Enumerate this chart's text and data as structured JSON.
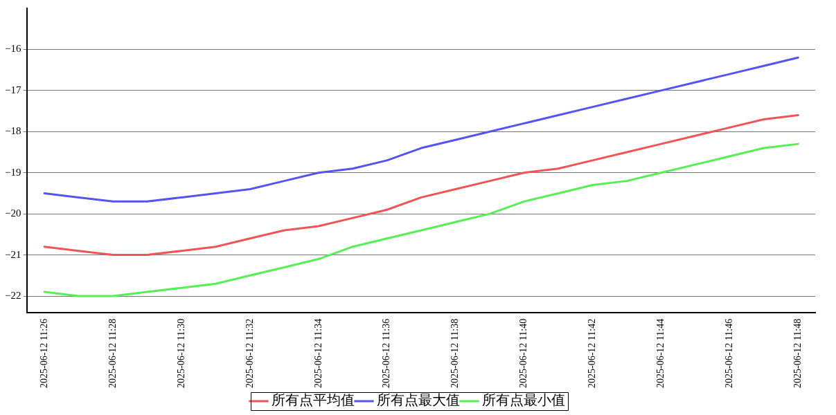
{
  "chart_data": {
    "type": "line",
    "categories": [
      "2025-06-12 11:26",
      null,
      "2025-06-12 11:28",
      null,
      "2025-06-12 11:30",
      null,
      "2025-06-12 11:32",
      null,
      "2025-06-12 11:34",
      null,
      "2025-06-12 11:36",
      null,
      "2025-06-12 11:38",
      null,
      "2025-06-12 11:40",
      null,
      "2025-06-12 11:42",
      null,
      "2025-06-12 11:44",
      null,
      "2025-06-12 11:46",
      null,
      "2025-06-12 11:48"
    ],
    "series": [
      {
        "name": "所有点平均值",
        "color": "#f05454",
        "values": [
          -20.8,
          -20.9,
          -21.0,
          -21.0,
          -20.9,
          -20.8,
          -20.6,
          -20.4,
          -20.3,
          -20.1,
          -19.9,
          -19.6,
          -19.4,
          -19.2,
          -19.0,
          -18.9,
          -18.7,
          -18.5,
          -18.3,
          -18.1,
          -17.9,
          -17.7,
          -17.6
        ]
      },
      {
        "name": "所有点最大值",
        "color": "#5454f0",
        "values": [
          -19.5,
          -19.6,
          -19.7,
          -19.7,
          -19.6,
          -19.5,
          -19.4,
          -19.2,
          -19.0,
          -18.9,
          -18.7,
          -18.4,
          -18.2,
          -18.0,
          -17.8,
          -17.6,
          -17.4,
          -17.2,
          -17.0,
          -16.8,
          -16.6,
          -16.4,
          -16.2
        ]
      },
      {
        "name": "所有点最小值",
        "color": "#54f054",
        "values": [
          -21.9,
          -22.0,
          -22.0,
          -21.9,
          -21.8,
          -21.7,
          -21.5,
          -21.3,
          -21.1,
          -20.8,
          -20.6,
          -20.4,
          -20.2,
          -20.0,
          -19.7,
          -19.5,
          -19.3,
          -19.2,
          -19.0,
          -18.8,
          -18.6,
          -18.4,
          -18.3
        ]
      }
    ],
    "ylim": [
      -22.4,
      -15
    ],
    "yticks": [
      -22,
      -21,
      -20,
      -19,
      -18,
      -17,
      -16
    ],
    "grid": "y",
    "legend": "bottom",
    "marker": "none",
    "line_style": "solid"
  }
}
